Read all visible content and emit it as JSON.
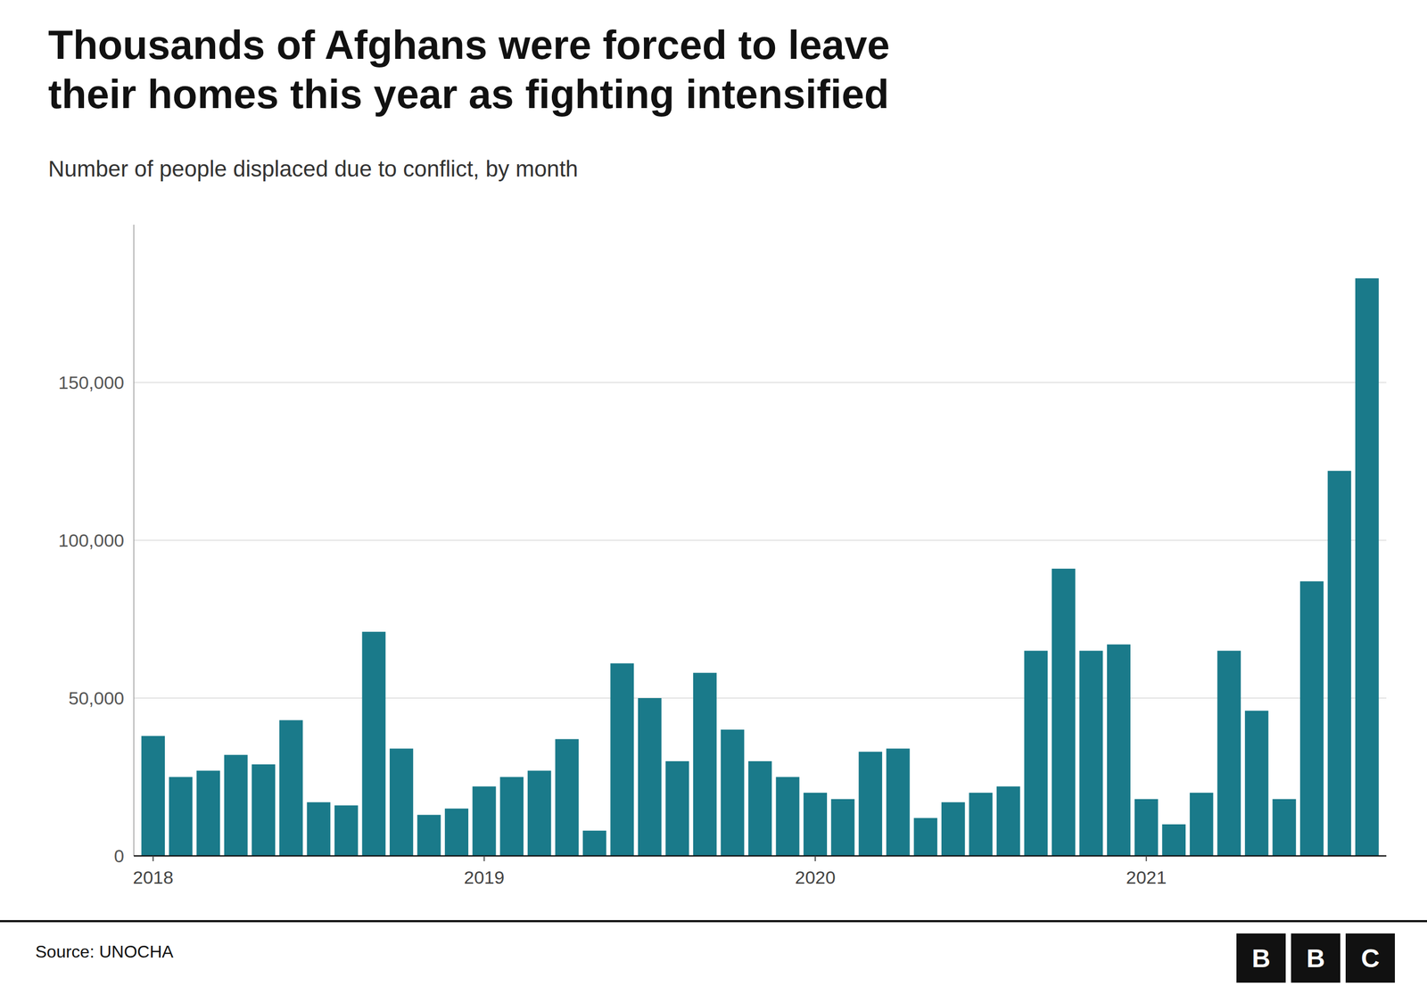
{
  "chart_data": {
    "type": "bar",
    "title": [
      "Thousands of Afghans were forced to leave",
      "their homes this year as fighting intensified"
    ],
    "subtitle": "Number of people displaced due to conflict, by month",
    "source": "Source: UNOCHA",
    "logo": [
      "B",
      "B",
      "C"
    ],
    "categories": [
      "2018",
      null,
      null,
      null,
      null,
      null,
      null,
      null,
      null,
      null,
      null,
      null,
      "2019",
      null,
      null,
      null,
      null,
      null,
      null,
      null,
      null,
      null,
      null,
      null,
      "2020",
      null,
      null,
      null,
      null,
      null,
      null,
      null,
      null,
      null,
      null,
      null,
      "2021",
      null,
      null,
      null,
      null,
      null,
      null,
      null,
      null
    ],
    "values": [
      38000,
      25000,
      27000,
      32000,
      29000,
      43000,
      17000,
      16000,
      71000,
      34000,
      13000,
      15000,
      22000,
      25000,
      27000,
      37000,
      8000,
      61000,
      50000,
      30000,
      58000,
      40000,
      30000,
      25000,
      20000,
      18000,
      33000,
      34000,
      12000,
      17000,
      20000,
      22000,
      65000,
      91000,
      65000,
      67000,
      18000,
      10000,
      20000,
      65000,
      46000,
      18000,
      87000,
      122000,
      183000
    ],
    "color": "#1a7a8a",
    "ylim": [
      0,
      200000
    ],
    "yticks": [
      0,
      {
        "value": 50000,
        "label": "50,000"
      },
      {
        "value": 100000,
        "label": "100,000"
      },
      {
        "value": 150000,
        "label": "150,000"
      }
    ],
    "grid": true
  }
}
